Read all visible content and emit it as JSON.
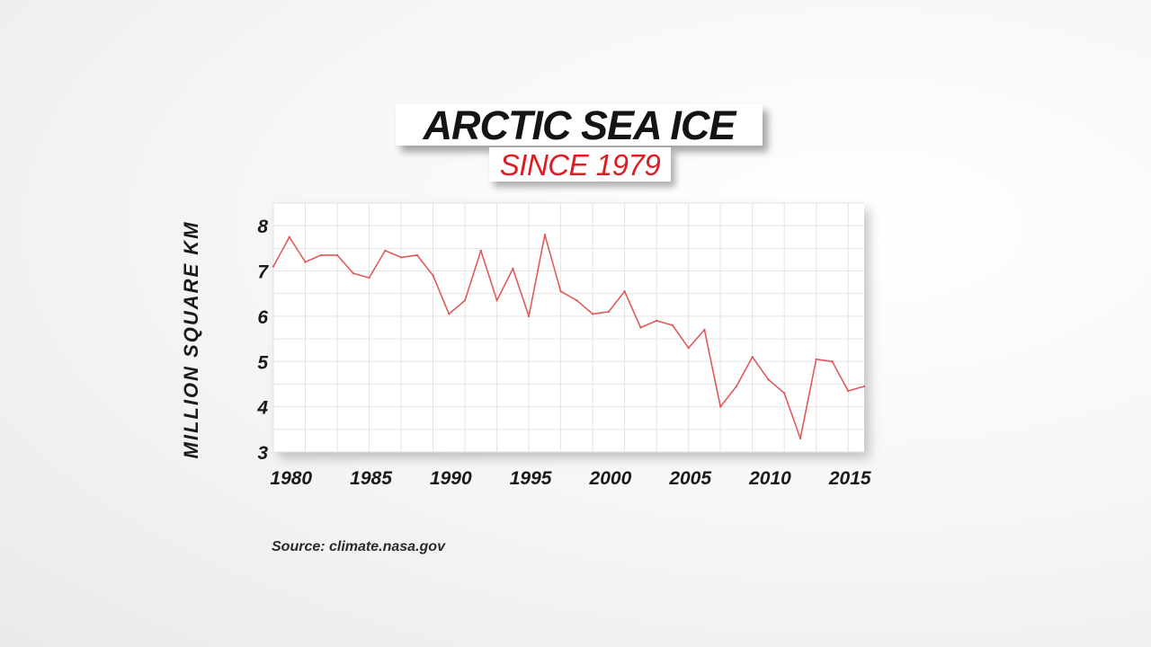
{
  "header": {
    "title": "ARCTIC SEA ICE",
    "subtitle": "SINCE 1979"
  },
  "source": "Source: climate.nasa.gov",
  "colors": {
    "line": "#e05a5a",
    "subtitle": "#dd1d24",
    "grid": "#e3e3e3"
  },
  "chart_data": {
    "type": "line",
    "title": "ARCTIC SEA ICE",
    "subtitle": "SINCE 1979",
    "xlabel": "",
    "ylabel": "MILLION SQUARE KM",
    "xlim": [
      1979,
      2016
    ],
    "ylim": [
      3,
      8.5
    ],
    "grid": true,
    "x_ticks": [
      "1980",
      "1985",
      "1990",
      "1995",
      "2000",
      "2005",
      "2010",
      "2015"
    ],
    "y_ticks": [
      "3",
      "4",
      "5",
      "6",
      "7",
      "8"
    ],
    "x": [
      1979,
      1980,
      1981,
      1982,
      1983,
      1984,
      1985,
      1986,
      1987,
      1988,
      1989,
      1990,
      1991,
      1992,
      1993,
      1994,
      1995,
      1996,
      1997,
      1998,
      1999,
      2000,
      2001,
      2002,
      2003,
      2004,
      2005,
      2006,
      2007,
      2008,
      2009,
      2010,
      2011,
      2012,
      2013,
      2014,
      2015,
      2016
    ],
    "series": [
      {
        "values": [
          7.1,
          7.75,
          7.2,
          7.35,
          7.35,
          6.95,
          6.85,
          7.45,
          7.3,
          7.35,
          6.9,
          6.05,
          6.35,
          7.45,
          6.35,
          7.05,
          6.0,
          7.8,
          6.55,
          6.35,
          6.05,
          6.1,
          6.55,
          5.75,
          5.9,
          5.8,
          5.3,
          5.7,
          4.0,
          4.45,
          5.1,
          4.6,
          4.3,
          3.3,
          5.05,
          5.0,
          4.35,
          4.45
        ]
      }
    ]
  }
}
